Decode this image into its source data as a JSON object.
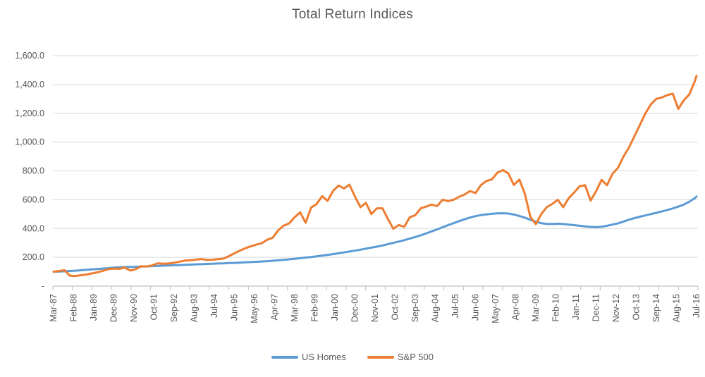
{
  "chart_data": {
    "type": "line",
    "title": "Total Return Indices",
    "xlabel": "",
    "ylabel": "",
    "ylim": [
      0,
      1600
    ],
    "y_axis": {
      "min": 0,
      "max": 1600,
      "step": 200,
      "tick_labels_top_to_bottom": [
        "1,600.0",
        "1,400.0",
        "1,200.0",
        "1,000.0",
        "800.0",
        "600.0",
        "400.0",
        "200.0",
        "-"
      ]
    },
    "x_axis": {
      "tick_labels": [
        "Mar-87",
        "Feb-88",
        "Jan-89",
        "Dec-89",
        "Nov-90",
        "Oct-91",
        "Sep-92",
        "Aug-93",
        "Jul-94",
        "Jun-95",
        "May-96",
        "Apr-97",
        "Mar-98",
        "Feb-99",
        "Jan-00",
        "Dec-00",
        "Nov-01",
        "Oct-02",
        "Sep-03",
        "Aug-04",
        "Jul-05",
        "Jun-06",
        "May-07",
        "Apr-08",
        "Mar-09",
        "Feb-10",
        "Jan-11",
        "Dec-11",
        "Nov-12",
        "Oct-13",
        "Sep-14",
        "Aug-15",
        "Jul-16"
      ],
      "label_every_n_months": 11,
      "total_months": 352,
      "label_rotation_degrees": -90
    },
    "sampling_note": "series values sampled quarterly from Mar-87; final point is Jul-16",
    "month_step_between_points": 3,
    "grid": "horizontal",
    "legend_position": "bottom",
    "series": [
      {
        "name": "US Homes",
        "color": "#5B9BD5",
        "values": [
          100,
          101,
          103,
          105,
          107,
          110,
          113,
          116,
          119,
          122,
          125,
          128,
          130,
          132,
          133,
          134,
          136,
          137,
          139,
          140,
          142,
          143,
          145,
          146,
          148,
          149,
          151,
          152,
          154,
          155,
          157,
          158,
          160,
          161,
          163,
          165,
          167,
          169,
          171,
          173,
          176,
          179,
          182,
          186,
          190,
          194,
          198,
          202,
          207,
          212,
          217,
          222,
          228,
          234,
          240,
          246,
          253,
          260,
          267,
          274,
          282,
          291,
          300,
          309,
          319,
          330,
          341,
          353,
          366,
          380,
          394,
          409,
          423,
          437,
          451,
          464,
          476,
          486,
          493,
          498,
          502,
          505,
          506,
          504,
          497,
          487,
          475,
          461,
          447,
          437,
          432,
          431,
          433,
          431,
          427,
          423,
          419,
          415,
          411,
          409,
          412,
          419,
          427,
          436,
          448,
          461,
          472,
          482,
          491,
          500,
          509,
          518,
          528,
          539,
          552,
          566,
          585,
          610,
          622
        ]
      },
      {
        "name": "S&P 500",
        "color": "#ED7D31",
        "values": [
          100,
          105,
          110,
          72,
          70,
          76,
          80,
          88,
          96,
          106,
          118,
          122,
          120,
          128,
          108,
          118,
          138,
          136,
          144,
          158,
          155,
          157,
          162,
          170,
          177,
          179,
          184,
          188,
          182,
          183,
          187,
          191,
          208,
          228,
          246,
          263,
          276,
          288,
          298,
          322,
          336,
          388,
          420,
          436,
          478,
          512,
          440,
          545,
          570,
          625,
          592,
          660,
          698,
          678,
          704,
          622,
          548,
          578,
          500,
          540,
          540,
          468,
          398,
          424,
          412,
          478,
          492,
          540,
          552,
          566,
          556,
          600,
          590,
          600,
          620,
          636,
          660,
          646,
          702,
          730,
          742,
          788,
          806,
          782,
          702,
          740,
          640,
          482,
          430,
          500,
          548,
          570,
          600,
          548,
          610,
          650,
          694,
          700,
          594,
          658,
          738,
          700,
          780,
          822,
          900,
          962,
          1040,
          1120,
          1200,
          1262,
          1300,
          1310,
          1326,
          1336,
          1230,
          1290,
          1330,
          1420,
          1460
        ]
      }
    ]
  },
  "colors": {
    "text": "#595959",
    "gridline": "#D9D9D9",
    "axis_line": "#BFBFBF",
    "background": "#FFFFFF"
  },
  "legend": {
    "items": [
      {
        "label": "US Homes"
      },
      {
        "label": "S&P 500"
      }
    ]
  }
}
